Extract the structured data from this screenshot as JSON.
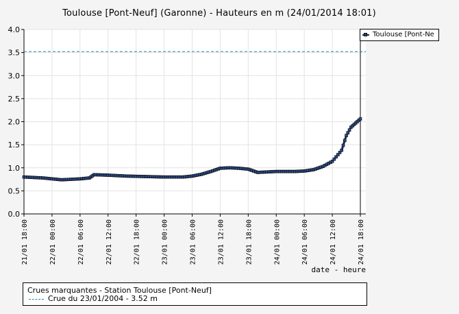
{
  "chart_data": {
    "type": "line",
    "title": "Toulouse [Pont-Neuf] (Garonne) - Hauteurs en m (24/01/2014 18:01)",
    "xlabel": "date - heure",
    "ylabel": "",
    "ylim": [
      0,
      4.0
    ],
    "y_ticks": [
      "0.0",
      "0.5",
      "1.0",
      "1.5",
      "2.0",
      "2.5",
      "3.0",
      "3.5",
      "4.0"
    ],
    "x_ticks": [
      "21/01 18:00",
      "22/01 00:00",
      "22/01 06:00",
      "22/01 12:00",
      "22/01 18:00",
      "23/01 00:00",
      "23/01 06:00",
      "23/01 12:00",
      "23/01 18:00",
      "24/01 00:00",
      "24/01 06:00",
      "24/01 12:00",
      "24/01 18:00"
    ],
    "grid": true,
    "legend_position": "right",
    "series": [
      {
        "name": "Toulouse [Pont-Ne",
        "color": "#1b2a4a",
        "marker_color": "#2e4c86",
        "x": [
          "21/01 18:00",
          "21/01 20:00",
          "21/01 22:00",
          "22/01 00:00",
          "22/01 02:00",
          "22/01 04:00",
          "22/01 06:00",
          "22/01 08:00",
          "22/01 09:00",
          "22/01 12:00",
          "22/01 16:00",
          "22/01 20:00",
          "23/01 00:00",
          "23/01 04:00",
          "23/01 06:00",
          "23/01 08:00",
          "23/01 10:00",
          "23/01 12:00",
          "23/01 14:00",
          "23/01 16:00",
          "23/01 18:00",
          "23/01 20:00",
          "24/01 00:00",
          "24/01 04:00",
          "24/01 06:00",
          "24/01 08:00",
          "24/01 10:00",
          "24/01 12:00",
          "24/01 14:00",
          "24/01 15:00",
          "24/01 16:00",
          "24/01 17:00",
          "24/01 18:00"
        ],
        "values": [
          0.8,
          0.79,
          0.78,
          0.76,
          0.74,
          0.75,
          0.76,
          0.78,
          0.85,
          0.84,
          0.82,
          0.81,
          0.8,
          0.8,
          0.82,
          0.86,
          0.92,
          0.99,
          1.0,
          0.99,
          0.97,
          0.9,
          0.92,
          0.92,
          0.93,
          0.96,
          1.03,
          1.14,
          1.38,
          1.7,
          1.88,
          1.97,
          2.06
        ]
      }
    ],
    "reference_lines": [
      {
        "name": "Crue du 23/01/2004 - 3.52 m",
        "value": 3.52,
        "color": "#1b8aa9",
        "style": "dashed"
      }
    ]
  },
  "legend": {
    "series_label": "Toulouse [Pont-Ne"
  },
  "footer": {
    "heading": "Crues marquantes - Station Toulouse [Pont-Neuf]",
    "entry": "Crue du 23/01/2004 - 3.52 m"
  }
}
